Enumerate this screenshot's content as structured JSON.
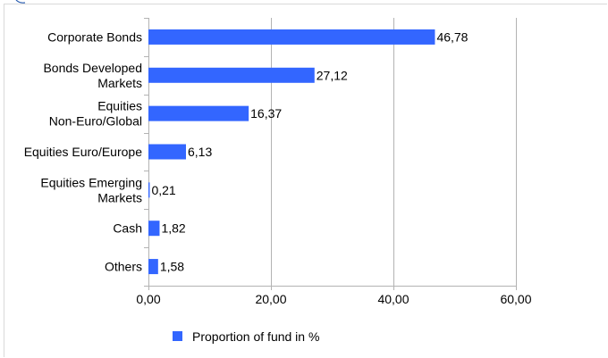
{
  "chart_data": {
    "type": "bar",
    "orientation": "horizontal",
    "categories": [
      [
        "Corporate Bonds"
      ],
      [
        "Bonds Developed",
        "Markets"
      ],
      [
        "Equities",
        "Non-Euro/Global"
      ],
      [
        "Equities Euro/Europe"
      ],
      [
        "Equities Emerging",
        "Markets"
      ],
      [
        "Cash"
      ],
      [
        "Others"
      ]
    ],
    "series": [
      {
        "name": "Proportion of fund in %",
        "values": [
          46.78,
          27.12,
          16.37,
          6.13,
          0.21,
          1.82,
          1.58
        ],
        "labels": [
          "46,78",
          "27,12",
          "16,37",
          "6,13",
          "0,21",
          "1,82",
          "1,58"
        ]
      }
    ],
    "xlim": [
      0,
      60
    ],
    "xticks": [
      {
        "value": 0,
        "label": "0,00"
      },
      {
        "value": 20,
        "label": "20,00"
      },
      {
        "value": 40,
        "label": "40,00"
      },
      {
        "value": 60,
        "label": "60,00"
      }
    ],
    "grid": "vertical",
    "legend": "bottom",
    "bar_color": "#3366ff",
    "axis_color": "#b3b3b3"
  }
}
